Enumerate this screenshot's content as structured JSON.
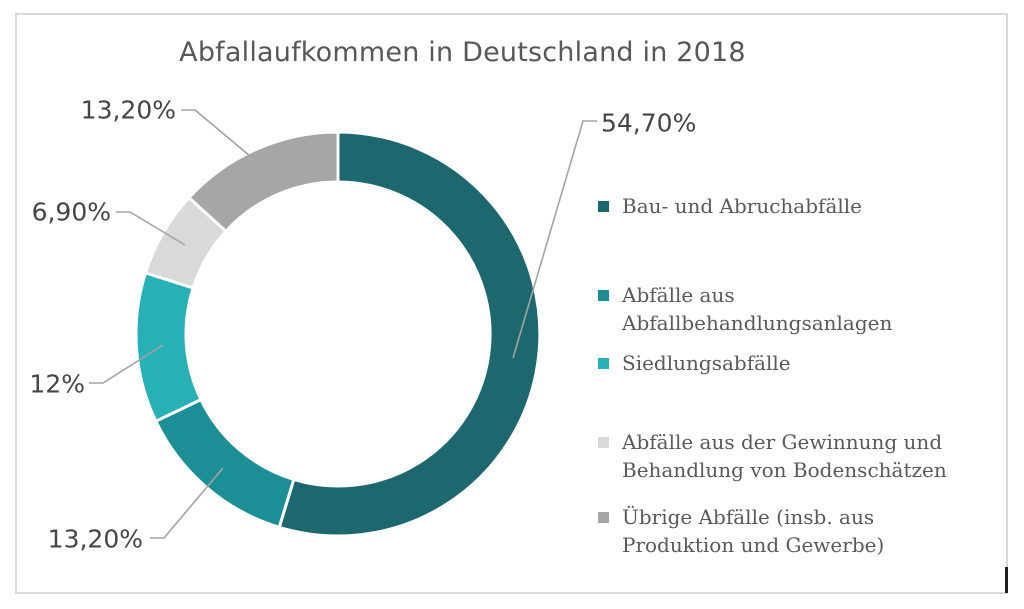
{
  "title": "Abfallaufkommen in Deutschland in 2018",
  "chart_data": {
    "type": "pie",
    "subtype": "donut",
    "title": "Abfallaufkommen in Deutschland in 2018",
    "unit": "%",
    "start_angle_deg": 0,
    "direction": "clockwise",
    "legend_position": "right",
    "slices": [
      {
        "label": "Bau- und Abruchabfälle",
        "value": 54.7,
        "display": "54,70%",
        "color": "#1d686f"
      },
      {
        "label": "Abfälle aus Abfallbehandlungsanlagen",
        "value": 13.2,
        "display": "13,20%",
        "color": "#1b8e96"
      },
      {
        "label": "Siedlungsabfälle",
        "value": 12,
        "display": "12%",
        "color": "#27b1b7"
      },
      {
        "label": "Abfälle aus der Gewinnung und Behandlung von Bodenschätzen",
        "value": 6.9,
        "display": "6,90%",
        "color": "#d9d9d9"
      },
      {
        "label": "Übrige Abfälle (insb. aus Produktion und Gewerbe)",
        "value": 13.2,
        "display": "13,20%",
        "color": "#a6a6a6"
      }
    ],
    "leader_line_color": "#a3a3a3",
    "colors": {
      "title_text": "#575757",
      "label_text": "#454545",
      "legend_text": "#595959",
      "frame_border": "#d9d9d9"
    }
  },
  "cursor": {
    "text_caret_visible": true
  }
}
